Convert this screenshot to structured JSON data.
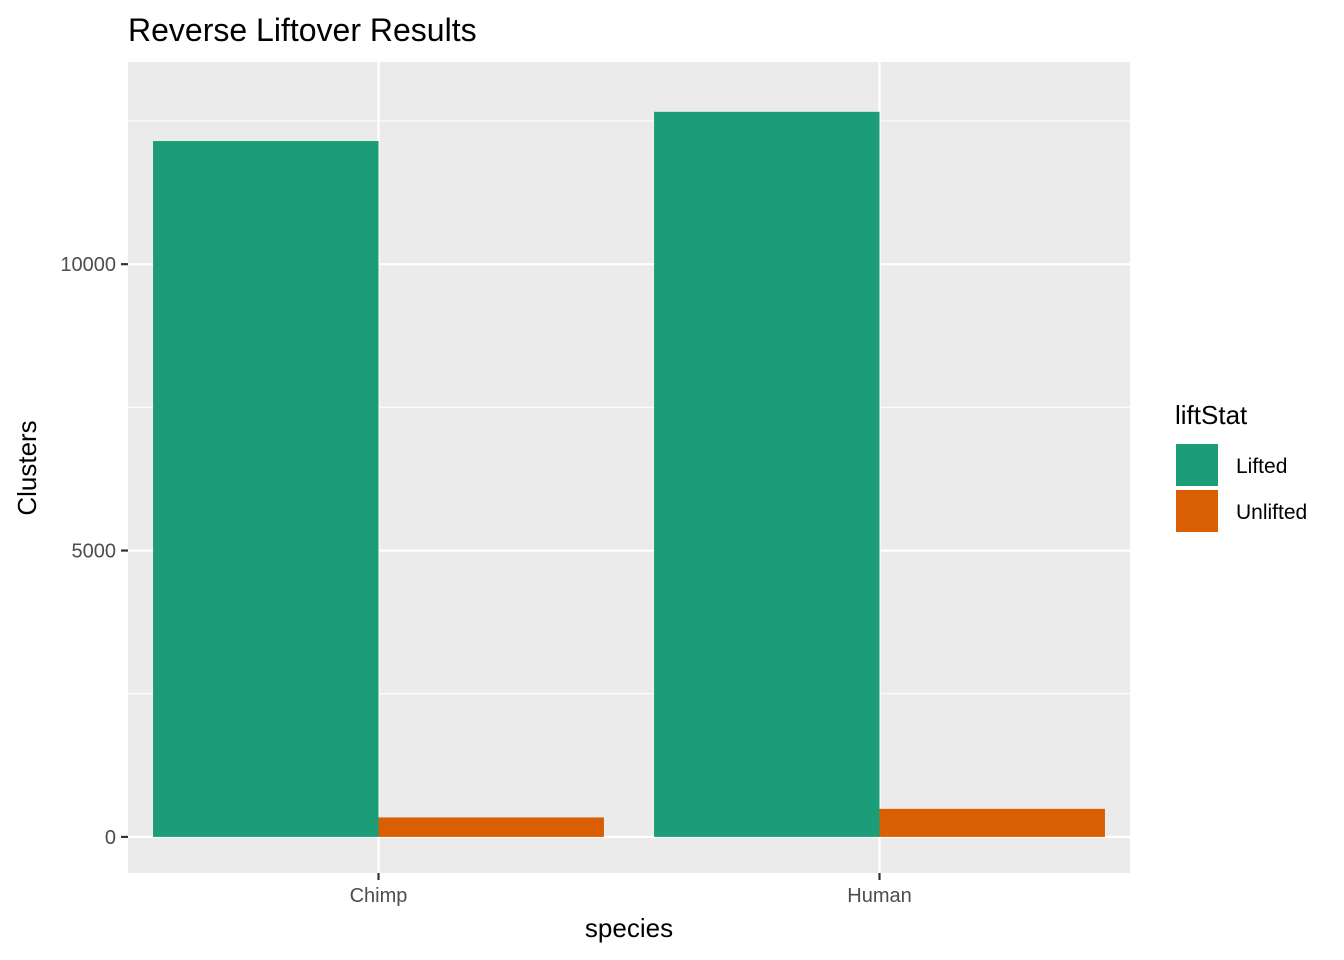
{
  "chart_data": {
    "type": "bar",
    "title": "Reverse Liftover Results",
    "xlabel": "species",
    "ylabel": "Clusters",
    "categories": [
      "Chimp",
      "Human"
    ],
    "series": [
      {
        "name": "Lifted",
        "values": [
          12150,
          12660
        ],
        "color": "#1b9e77"
      },
      {
        "name": "Unlifted",
        "values": [
          340,
          490
        ],
        "color": "#d95f02"
      }
    ],
    "ylim": [
      -630,
      13530
    ],
    "y_ticks": [
      0,
      5000,
      10000
    ],
    "y_tick_labels": [
      "0",
      "5000",
      "10000"
    ],
    "grid": true,
    "panel_background": "#ebebeb",
    "legend": {
      "title": "liftStat",
      "position": "right"
    }
  }
}
